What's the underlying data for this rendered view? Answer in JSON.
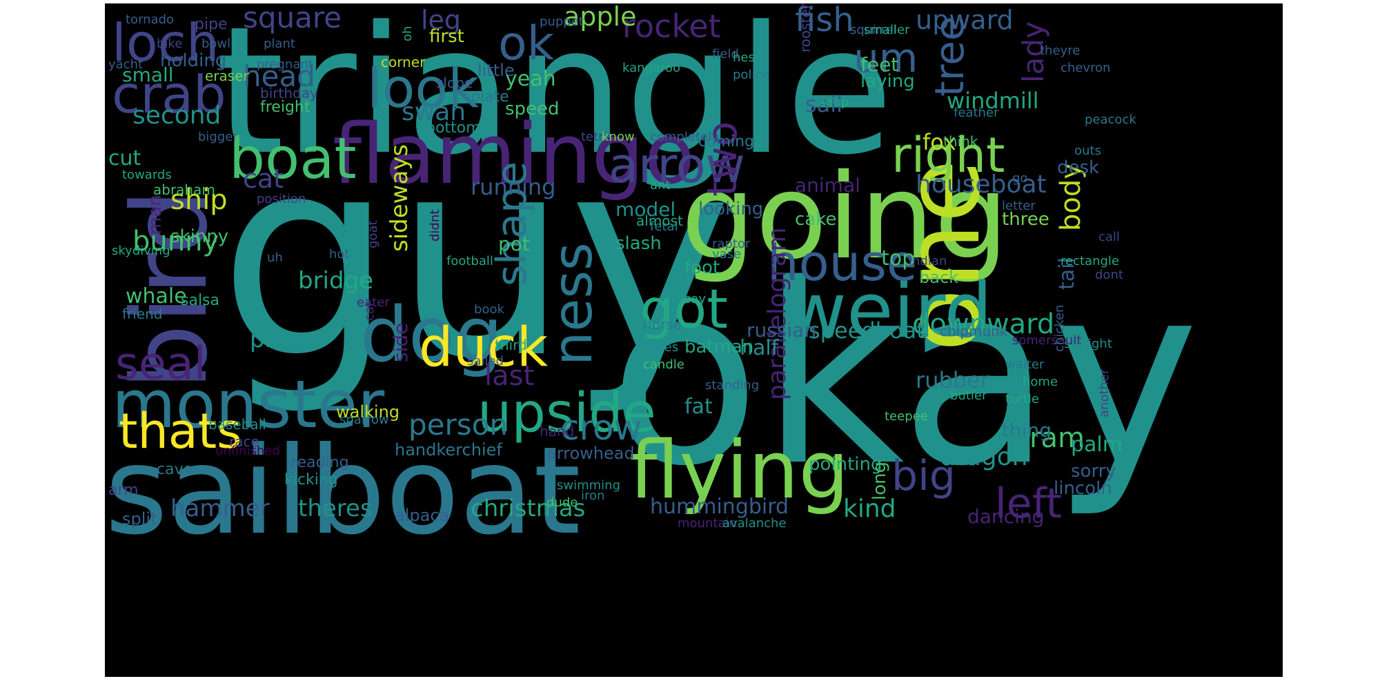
{
  "palette": {
    "page_background": "#ffffff",
    "cloud_background": "#000000",
    "v1": "#482475",
    "v2": "#414487",
    "v3": "#355f8d",
    "v4": "#2a788e",
    "v5": "#21918c",
    "v6": "#22a884",
    "v7": "#44bf70",
    "v8": "#7ad151",
    "v9": "#bddf26",
    "v10": "#fde725",
    "v0": "#440154"
  },
  "words": [
    {
      "text": "triangle",
      "color": "v5"
    },
    {
      "text": "guy",
      "color": "v5"
    },
    {
      "text": "okay",
      "color": "v5"
    },
    {
      "text": "sailboat",
      "color": "v4"
    },
    {
      "text": "going",
      "color": "v8"
    },
    {
      "text": "bird",
      "color": "v2"
    },
    {
      "text": "one",
      "color": "v9"
    },
    {
      "text": "flamingo",
      "color": "v1"
    },
    {
      "text": "weird",
      "color": "v5"
    },
    {
      "text": "flying",
      "color": "v8"
    },
    {
      "text": "monster",
      "color": "v4"
    },
    {
      "text": "dog",
      "color": "v4"
    },
    {
      "text": "upside",
      "color": "v6"
    },
    {
      "text": "boat",
      "color": "v7"
    },
    {
      "text": "crab",
      "color": "v2"
    },
    {
      "text": "loch",
      "color": "v2"
    },
    {
      "text": "look",
      "color": "v4"
    },
    {
      "text": "right",
      "color": "v8"
    },
    {
      "text": "arrow",
      "color": "v2"
    },
    {
      "text": "got",
      "color": "v6"
    },
    {
      "text": "duck",
      "color": "v10"
    },
    {
      "text": "ness",
      "color": "v4"
    },
    {
      "text": "house",
      "color": "v3"
    },
    {
      "text": "two",
      "color": "v1"
    },
    {
      "text": "tree",
      "color": "v3"
    },
    {
      "text": "thats",
      "color": "v10"
    },
    {
      "text": "seal",
      "color": "v1"
    },
    {
      "text": "shape",
      "color": "v4"
    },
    {
      "text": "ok",
      "color": "v3"
    },
    {
      "text": "um",
      "color": "v3"
    },
    {
      "text": "big",
      "color": "v2"
    },
    {
      "text": "left",
      "color": "v1"
    },
    {
      "text": "crow",
      "color": "v4"
    },
    {
      "text": "person",
      "color": "v4"
    },
    {
      "text": "square",
      "color": "v2"
    },
    {
      "text": "fish",
      "color": "v3"
    },
    {
      "text": "rocket",
      "color": "v1"
    },
    {
      "text": "head",
      "color": "v3"
    },
    {
      "text": "apple",
      "color": "v8"
    },
    {
      "text": "upward",
      "color": "v3"
    },
    {
      "text": "leg",
      "color": "v2"
    },
    {
      "text": "lady",
      "color": "v1"
    },
    {
      "text": "downward",
      "color": "v6"
    },
    {
      "text": "parallelogram",
      "color": "v1"
    },
    {
      "text": "houseboat",
      "color": "v3"
    },
    {
      "text": "speedboat",
      "color": "v5"
    },
    {
      "text": "body",
      "color": "v9"
    },
    {
      "text": "ram",
      "color": "v7"
    },
    {
      "text": "dragon",
      "color": "v5"
    },
    {
      "text": "rubber",
      "color": "v4"
    },
    {
      "text": "kind",
      "color": "v6"
    },
    {
      "text": "last",
      "color": "v1"
    },
    {
      "text": "swan",
      "color": "v4"
    },
    {
      "text": "second",
      "color": "v5"
    },
    {
      "text": "ship",
      "color": "v9"
    },
    {
      "text": "cat",
      "color": "v2"
    },
    {
      "text": "sideways",
      "color": "v9"
    },
    {
      "text": "windmill",
      "color": "v6"
    },
    {
      "text": "sail",
      "color": "v3"
    },
    {
      "text": "fox",
      "color": "v9"
    },
    {
      "text": "bunny",
      "color": "v7"
    },
    {
      "text": "pizza",
      "color": "v5"
    },
    {
      "text": "bridge",
      "color": "v6"
    },
    {
      "text": "hammer",
      "color": "v3"
    },
    {
      "text": "theres",
      "color": "v5"
    },
    {
      "text": "christmas",
      "color": "v6"
    },
    {
      "text": "hummingbird",
      "color": "v3"
    },
    {
      "text": "running",
      "color": "v3"
    },
    {
      "text": "animal",
      "color": "v1"
    },
    {
      "text": "tail",
      "color": "v3"
    },
    {
      "text": "top",
      "color": "v7"
    },
    {
      "text": "cut",
      "color": "v6"
    },
    {
      "text": "whale",
      "color": "v7"
    },
    {
      "text": "side",
      "color": "v1"
    },
    {
      "text": "half",
      "color": "v5"
    },
    {
      "text": "russian",
      "color": "v3"
    },
    {
      "text": "model",
      "color": "v5"
    },
    {
      "text": "looking",
      "color": "v3"
    },
    {
      "text": "palm",
      "color": "v6"
    },
    {
      "text": "feet",
      "color": "v7"
    },
    {
      "text": "laying",
      "color": "v6"
    },
    {
      "text": "small",
      "color": "v6"
    },
    {
      "text": "holding",
      "color": "v3"
    },
    {
      "text": "yeah",
      "color": "v7"
    },
    {
      "text": "speed",
      "color": "v7"
    },
    {
      "text": "first",
      "color": "v9"
    },
    {
      "text": "little",
      "color": "v3"
    },
    {
      "text": "pot",
      "color": "v7"
    },
    {
      "text": "slash",
      "color": "v6"
    },
    {
      "text": "foot",
      "color": "v6"
    },
    {
      "text": "fat",
      "color": "v5"
    },
    {
      "text": "batman",
      "color": "v6"
    },
    {
      "text": "three",
      "color": "v8"
    },
    {
      "text": "back",
      "color": "v7"
    },
    {
      "text": "cake",
      "color": "v7"
    },
    {
      "text": "desk",
      "color": "v3"
    },
    {
      "text": "skinny",
      "color": "v7"
    },
    {
      "text": "man",
      "color": "v1"
    },
    {
      "text": "thing",
      "color": "v4"
    },
    {
      "text": "pointing",
      "color": "v6"
    },
    {
      "text": "long",
      "color": "v7"
    },
    {
      "text": "dancing",
      "color": "v1"
    },
    {
      "text": "sorry",
      "color": "v3"
    },
    {
      "text": "lincoln",
      "color": "v3"
    },
    {
      "text": "walking",
      "color": "v9"
    },
    {
      "text": "handkerchief",
      "color": "v4"
    },
    {
      "text": "arrowhead",
      "color": "v3"
    },
    {
      "text": "alpaca",
      "color": "v3"
    },
    {
      "text": "split",
      "color": "v3"
    },
    {
      "text": "coming",
      "color": "v4"
    },
    {
      "text": "freight",
      "color": "v7"
    },
    {
      "text": "birthday",
      "color": "v2"
    },
    {
      "text": "salsa",
      "color": "v6"
    },
    {
      "text": "friend",
      "color": "v4"
    },
    {
      "text": "baseball",
      "color": "v5"
    },
    {
      "text": "race",
      "color": "v2"
    },
    {
      "text": "reading",
      "color": "v3"
    },
    {
      "text": "kicking",
      "color": "v5"
    },
    {
      "text": "cave",
      "color": "v4"
    },
    {
      "text": "arm",
      "color": "v2"
    },
    {
      "text": "bottom",
      "color": "v5"
    },
    {
      "text": "plate",
      "color": "v4"
    },
    {
      "text": "slope",
      "color": "v3"
    },
    {
      "text": "corner",
      "color": "v9"
    },
    {
      "text": "eraser",
      "color": "v8"
    },
    {
      "text": "yacht",
      "color": "v3"
    },
    {
      "text": "pregnant",
      "color": "v3"
    },
    {
      "text": "kangaroo",
      "color": "v6"
    },
    {
      "text": "police",
      "color": "v4"
    },
    {
      "text": "rooster",
      "color": "v2"
    },
    {
      "text": "chevron",
      "color": "v3"
    },
    {
      "text": "peacock",
      "color": "v4"
    },
    {
      "text": "feather",
      "color": "v4"
    },
    {
      "text": "soup",
      "color": "v6"
    },
    {
      "text": "think",
      "color": "v7"
    },
    {
      "text": "outs",
      "color": "v4"
    },
    {
      "text": "go",
      "color": "v3"
    },
    {
      "text": "letter",
      "color": "v3"
    },
    {
      "text": "call",
      "color": "v2"
    },
    {
      "text": "rectangle",
      "color": "v6"
    },
    {
      "text": "dont",
      "color": "v2"
    },
    {
      "text": "indian",
      "color": "v2"
    },
    {
      "text": "straight",
      "color": "v5"
    },
    {
      "text": "somersault",
      "color": "v1"
    },
    {
      "text": "chicken",
      "color": "v3"
    },
    {
      "text": "waiter",
      "color": "v4"
    },
    {
      "text": "home",
      "color": "v6"
    },
    {
      "text": "turtle",
      "color": "v6"
    },
    {
      "text": "another",
      "color": "v2"
    },
    {
      "text": "teepee",
      "color": "v7"
    },
    {
      "text": "butler",
      "color": "v6"
    },
    {
      "text": "standing",
      "color": "v3"
    },
    {
      "text": "candle",
      "color": "v7"
    },
    {
      "text": "shes",
      "color": "v5"
    },
    {
      "text": "horse",
      "color": "v4"
    },
    {
      "text": "say",
      "color": "v6"
    },
    {
      "text": "chipmunk",
      "color": "v3"
    },
    {
      "text": "raptor",
      "color": "v3"
    },
    {
      "text": "vase",
      "color": "v4"
    },
    {
      "text": "fetal",
      "color": "v4"
    },
    {
      "text": "almost",
      "color": "v6"
    },
    {
      "text": "ant",
      "color": "v6"
    },
    {
      "text": "tetris",
      "color": "v2"
    },
    {
      "text": "know",
      "color": "v8"
    },
    {
      "text": "completely",
      "color": "v3"
    },
    {
      "text": "bigger",
      "color": "v3"
    },
    {
      "text": "tornado",
      "color": "v3"
    },
    {
      "text": "pipe",
      "color": "v2"
    },
    {
      "text": "puppet",
      "color": "v3"
    },
    {
      "text": "squirrel",
      "color": "v3"
    },
    {
      "text": "bike",
      "color": "v2"
    },
    {
      "text": "bowl",
      "color": "v3"
    },
    {
      "text": "plant",
      "color": "v3"
    },
    {
      "text": "field",
      "color": "v3"
    },
    {
      "text": "hes",
      "color": "v6"
    },
    {
      "text": "smaller",
      "color": "v6"
    },
    {
      "text": "theyre",
      "color": "v3"
    },
    {
      "text": "oh",
      "color": "v6"
    },
    {
      "text": "towards",
      "color": "v6"
    },
    {
      "text": "abraham",
      "color": "v7"
    },
    {
      "text": "position",
      "color": "v2"
    },
    {
      "text": "hot",
      "color": "v3"
    },
    {
      "text": "goat",
      "color": "v2"
    },
    {
      "text": "didnt",
      "color": "v0"
    },
    {
      "text": "skydiving",
      "color": "v6"
    },
    {
      "text": "uh",
      "color": "v3"
    },
    {
      "text": "football",
      "color": "v6"
    },
    {
      "text": "eater",
      "color": "v1"
    },
    {
      "text": "book",
      "color": "v3"
    },
    {
      "text": "car",
      "color": "v1"
    },
    {
      "text": "third",
      "color": "v6"
    },
    {
      "text": "sparrow",
      "color": "v4"
    },
    {
      "text": "hand",
      "color": "v1"
    },
    {
      "text": "unfinished",
      "color": "v0"
    },
    {
      "text": "sailed",
      "color": "v3"
    },
    {
      "text": "swimming",
      "color": "v5"
    },
    {
      "text": "dude",
      "color": "v7"
    },
    {
      "text": "iron",
      "color": "v4"
    },
    {
      "text": "mountain",
      "color": "v1"
    },
    {
      "text": "avalanche",
      "color": "v5"
    }
  ]
}
